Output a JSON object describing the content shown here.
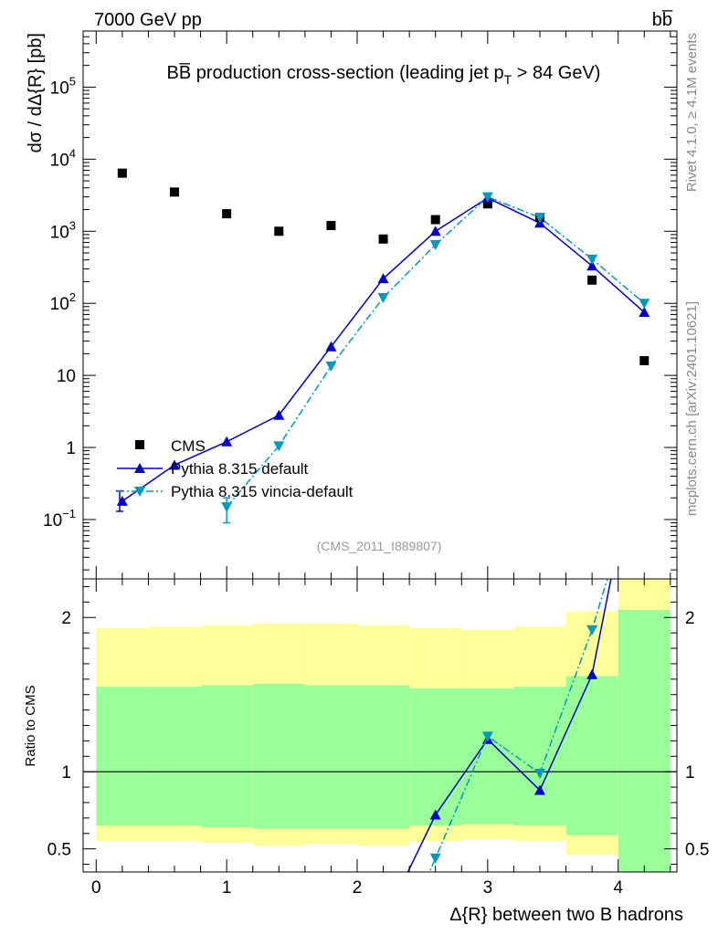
{
  "header": {
    "left": "7000 GeV pp",
    "right": "bb̅"
  },
  "side": {
    "top": "Rivet 4.1.0, ≥ 4.1M events",
    "bottom": "mcplots.cern.ch [arXiv:2401.10621]"
  },
  "chart_data": [
    {
      "type": "scatter",
      "title": "BB̅ production cross-section (leading jet p",
      "title_sub": "T",
      "title_tail": " > 84 GeV)",
      "ylabel": "dσ / dΔ{R} [pb]",
      "yscale": "log",
      "ylim": [
        0.015,
        600000
      ],
      "xlim": [
        -0.1,
        4.45
      ],
      "y_ticks": [
        {
          "value": 0.1,
          "base": "10",
          "exp": "−1"
        },
        {
          "value": 1,
          "base": "1",
          "exp": ""
        },
        {
          "value": 10,
          "base": "10",
          "exp": ""
        },
        {
          "value": 100,
          "base": "10",
          "exp": "2"
        },
        {
          "value": 1000,
          "base": "10",
          "exp": "3"
        },
        {
          "value": 10000,
          "base": "10",
          "exp": "4"
        },
        {
          "value": 100000,
          "base": "10",
          "exp": "5"
        }
      ],
      "watermark": "(CMS_2011_I889807)",
      "series": [
        {
          "name": "CMS",
          "style": "square",
          "color": "#000000",
          "x": [
            0.2,
            0.6,
            1.0,
            1.4,
            1.8,
            2.2,
            2.6,
            3.0,
            3.4,
            3.8,
            4.2
          ],
          "y": [
            6400,
            3500,
            1750,
            1000,
            1200,
            780,
            1450,
            2400,
            1550,
            210,
            16
          ]
        },
        {
          "name": "Pythia 8.315 default",
          "style": "triangle-up",
          "color": "#0000cc",
          "line": "solid",
          "x": [
            0.2,
            0.6,
            1.0,
            1.4,
            1.8,
            2.2,
            2.6,
            3.0,
            3.4,
            3.8,
            4.2
          ],
          "y": [
            0.18,
            0.57,
            1.2,
            2.8,
            25,
            220,
            1000,
            2900,
            1300,
            330,
            75
          ],
          "err": [
            [
              0.18,
              0.13,
              0.25
            ]
          ]
        },
        {
          "name": "Pythia 8.315 vincia-default",
          "style": "triangle-down",
          "color": "#0099bb",
          "line": "dashdot",
          "x": [
            1.0,
            1.4,
            1.8,
            2.2,
            2.6,
            3.0,
            3.4,
            3.8,
            4.2
          ],
          "y": [
            0.15,
            1.05,
            13.5,
            120,
            650,
            3000,
            1550,
            410,
            100
          ],
          "err": [
            [
              1.0,
              0.09,
              0.2
            ]
          ]
        }
      ]
    },
    {
      "type": "scatter",
      "ylabel": "Ratio to CMS",
      "xlabel": "Δ{R} between two B hadrons",
      "xlim": [
        -0.1,
        4.45
      ],
      "ylim": [
        0.35,
        2.25
      ],
      "x_ticks": [
        "0",
        "1",
        "2",
        "3",
        "4"
      ],
      "y_ticks": [
        "0.5",
        "1",
        "2"
      ],
      "bands": [
        {
          "x0": 0.0,
          "x1": 0.4,
          "yellow": [
            0.55,
            1.93
          ],
          "green": [
            0.65,
            1.55
          ]
        },
        {
          "x0": 0.4,
          "x1": 0.8,
          "yellow": [
            0.55,
            1.94
          ],
          "green": [
            0.65,
            1.55
          ]
        },
        {
          "x0": 0.8,
          "x1": 1.2,
          "yellow": [
            0.54,
            1.95
          ],
          "green": [
            0.64,
            1.56
          ]
        },
        {
          "x0": 1.2,
          "x1": 1.6,
          "yellow": [
            0.52,
            1.96
          ],
          "green": [
            0.63,
            1.57
          ]
        },
        {
          "x0": 1.6,
          "x1": 2.0,
          "yellow": [
            0.53,
            1.96
          ],
          "green": [
            0.63,
            1.56
          ]
        },
        {
          "x0": 2.0,
          "x1": 2.4,
          "yellow": [
            0.52,
            1.95
          ],
          "green": [
            0.63,
            1.56
          ]
        },
        {
          "x0": 2.4,
          "x1": 2.8,
          "yellow": [
            0.55,
            1.93
          ],
          "green": [
            0.65,
            1.54
          ]
        },
        {
          "x0": 2.8,
          "x1": 3.2,
          "yellow": [
            0.56,
            1.92
          ],
          "green": [
            0.66,
            1.54
          ]
        },
        {
          "x0": 3.2,
          "x1": 3.6,
          "yellow": [
            0.55,
            1.94
          ],
          "green": [
            0.65,
            1.55
          ]
        },
        {
          "x0": 3.6,
          "x1": 4.0,
          "yellow": [
            0.46,
            2.04
          ],
          "green": [
            0.59,
            1.62
          ]
        },
        {
          "x0": 4.0,
          "x1": 4.4,
          "yellow": [
            0.3,
            2.3
          ],
          "green": [
            0.3,
            2.05
          ]
        }
      ],
      "ratio_series": [
        {
          "name": "default",
          "color": "#0000cc",
          "line": "solid",
          "marker": "triangle-up",
          "points": [
            [
              2.36,
              0.3
            ],
            [
              2.6,
              0.72
            ],
            [
              3.0,
              1.21
            ],
            [
              3.4,
              0.88
            ],
            [
              3.8,
              1.63
            ],
            [
              3.98,
              2.4
            ]
          ],
          "markers": [
            [
              2.6,
              0.72
            ],
            [
              3.0,
              1.21
            ],
            [
              3.4,
              0.88
            ],
            [
              3.8,
              1.63
            ]
          ]
        },
        {
          "name": "vincia",
          "color": "#0099bb",
          "line": "dashdot",
          "marker": "triangle-down",
          "points": [
            [
              2.53,
              0.3
            ],
            [
              2.6,
              0.44
            ],
            [
              3.0,
              1.23
            ],
            [
              3.4,
              0.99
            ],
            [
              3.8,
              1.92
            ],
            [
              3.97,
              2.4
            ]
          ],
          "markers": [
            [
              2.6,
              0.44
            ],
            [
              3.0,
              1.23
            ],
            [
              3.4,
              0.99
            ],
            [
              3.8,
              1.92
            ]
          ]
        }
      ]
    }
  ]
}
